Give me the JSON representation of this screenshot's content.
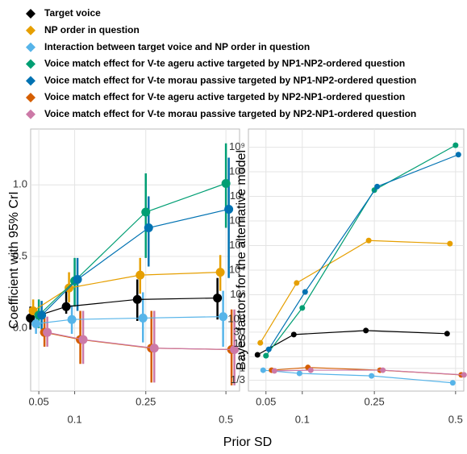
{
  "xlabel": "Prior SD",
  "chart_data": [
    {
      "type": "line",
      "ylabel": "Coefficient with 95% CrI",
      "x": [
        0.05,
        0.1,
        0.25,
        0.5
      ],
      "xscale": "sqrt",
      "xlim": [
        0.041,
        0.551
      ],
      "xticks": [
        0.05,
        0.1,
        0.25,
        0.5
      ],
      "ylim": [
        -0.44,
        1.39
      ],
      "yticks": [
        {
          "value": 0,
          "label": "0.0"
        },
        {
          "value": 0.5,
          "label": "0.5"
        },
        {
          "value": 1,
          "label": "1.0"
        }
      ],
      "grid": true,
      "legend": "top",
      "series": [
        {
          "name": "Target voice",
          "color": "#000000",
          "values": [
            0.07,
            0.15,
            0.2,
            0.21
          ],
          "lower": [
            -0.01,
            0.1,
            0.05,
            0.06
          ],
          "upper": [
            0.15,
            0.29,
            0.34,
            0.35
          ]
        },
        {
          "name": "NP order in question",
          "color": "#E69F00",
          "values": [
            0.12,
            0.28,
            0.37,
            0.39
          ],
          "lower": [
            0.04,
            0.18,
            0.24,
            0.26
          ],
          "upper": [
            0.2,
            0.39,
            0.49,
            0.51
          ]
        },
        {
          "name": "Interaction between target voice and NP order in question",
          "color": "#56B4E9",
          "values": [
            0.03,
            0.06,
            0.07,
            0.08
          ],
          "lower": [
            -0.04,
            -0.04,
            -0.1,
            -0.13
          ],
          "upper": [
            0.1,
            0.16,
            0.25,
            0.26
          ]
        },
        {
          "name": "Voice match effect for V-te ageru active targeted by NP1-NP2-ordered question",
          "color": "#009E73",
          "values": [
            0.09,
            0.33,
            0.81,
            1.01
          ],
          "lower": [
            0.0,
            0.15,
            0.49,
            0.7
          ],
          "upper": [
            0.2,
            0.49,
            1.08,
            1.29
          ]
        },
        {
          "name": "Voice match effect for V-te morau passive targeted by NP1-NP2-ordered question",
          "color": "#0072B2",
          "values": [
            0.09,
            0.34,
            0.7,
            0.83
          ],
          "lower": [
            -0.01,
            0.12,
            0.43,
            0.35
          ],
          "upper": [
            0.19,
            0.49,
            0.92,
            1.19
          ]
        },
        {
          "name": "Voice match effect for V-te ageru active targeted by NP2-NP1-ordered question",
          "color": "#D55E00",
          "values": [
            -0.03,
            -0.08,
            -0.14,
            -0.15
          ],
          "lower": [
            -0.13,
            -0.25,
            -0.38,
            -0.4
          ],
          "upper": [
            0.08,
            0.12,
            0.12,
            0.13
          ]
        },
        {
          "name": "Voice match effect for V-te morau passive targeted by NP2-NP1-ordered question",
          "color": "#CC79A7",
          "values": [
            -0.03,
            -0.08,
            -0.14,
            -0.15
          ],
          "lower": [
            -0.13,
            -0.25,
            -0.38,
            -0.4
          ],
          "upper": [
            0.08,
            0.12,
            0.12,
            0.13
          ]
        }
      ]
    },
    {
      "type": "line",
      "ylabel": "Bayes factors for the alternative model",
      "x": [
        0.05,
        0.1,
        0.25,
        0.5
      ],
      "xscale": "sqrt",
      "xlim": [
        0.032,
        0.53
      ],
      "xticks": [
        0.05,
        0.1,
        0.25,
        0.5
      ],
      "yscale": "log",
      "ylim": [
        0.12,
        5500000000
      ],
      "yticks": [
        {
          "value": 0.3333,
          "label": "1/3"
        },
        1,
        3,
        10,
        30,
        100,
        {
          "value": 1000,
          "label": "10³"
        },
        {
          "value": 10000,
          "label": "10⁴"
        },
        {
          "value": 100000,
          "label": "10⁵"
        },
        {
          "value": 1000000,
          "label": "10⁶"
        },
        {
          "value": 10000000,
          "label": "10⁷"
        },
        {
          "value": 100000000,
          "label": "10⁸"
        },
        {
          "value": 1000000000,
          "label": "10⁹"
        }
      ],
      "grid": true,
      "series": [
        {
          "color": "#000000",
          "values": [
            3.6,
            24,
            35,
            26
          ]
        },
        {
          "color": "#E69F00",
          "values": [
            11,
            3000,
            160000,
            120000
          ]
        },
        {
          "color": "#56B4E9",
          "values": [
            0.85,
            0.63,
            0.5,
            0.26
          ]
        },
        {
          "color": "#009E73",
          "values": [
            3.3,
            290,
            18000000,
            1200000000
          ]
        },
        {
          "color": "#0072B2",
          "values": [
            6,
            1300,
            25000000,
            500000000
          ]
        },
        {
          "color": "#D55E00",
          "values": [
            0.85,
            1.1,
            0.85,
            0.55
          ]
        },
        {
          "color": "#CC79A7",
          "values": [
            0.8,
            0.85,
            0.85,
            0.55
          ]
        }
      ]
    }
  ]
}
